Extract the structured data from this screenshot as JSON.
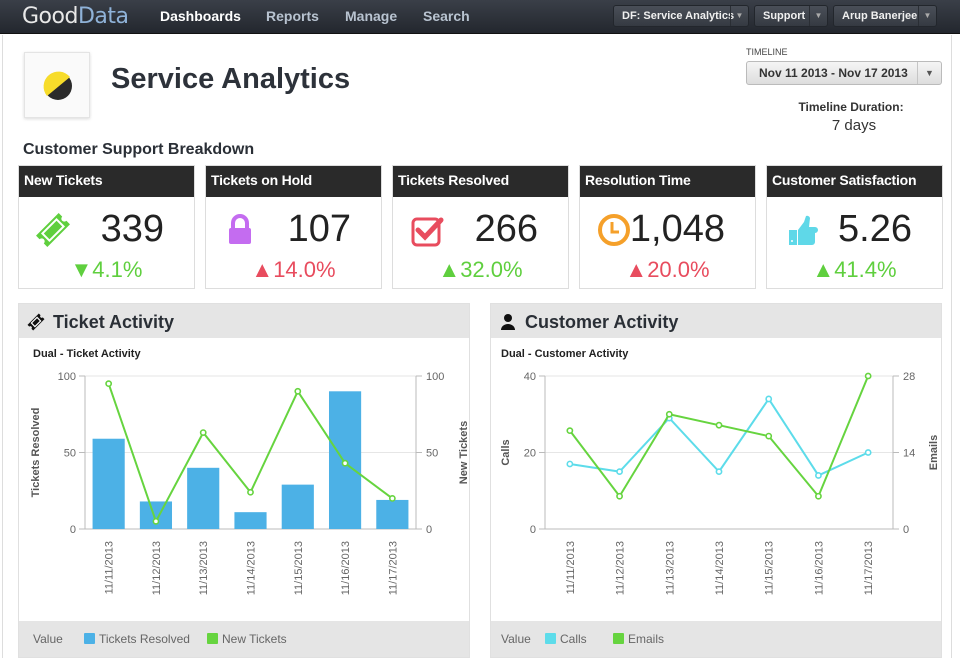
{
  "app": {
    "logo_good": "Good",
    "logo_data": "Data"
  },
  "nav": {
    "items": [
      {
        "label": "Dashboards",
        "active": true
      },
      {
        "label": "Reports"
      },
      {
        "label": "Manage"
      },
      {
        "label": "Search"
      }
    ]
  },
  "topbar": {
    "project": "DF: Service Analytics",
    "help": "Support",
    "user": "Arup Banerjee"
  },
  "header": {
    "title": "Service Analytics"
  },
  "timeline": {
    "label": "TIMELINE",
    "value": "Nov 11 2013 - Nov 17 2013",
    "duration_label": "Timeline Duration:",
    "duration_value": "7 days"
  },
  "section": {
    "title": "Customer Support Breakdown"
  },
  "kpis": [
    {
      "title": "New Tickets",
      "value": "339",
      "change": "▼4.1%",
      "direction": "down",
      "icon": "ticket-icon",
      "color": "#5fcf3e"
    },
    {
      "title": "Tickets on Hold",
      "value": "107",
      "change": "▲14.0%",
      "direction": "up",
      "icon": "lock-icon",
      "color": "#c46cf0"
    },
    {
      "title": "Tickets Resolved",
      "value": "266",
      "change": "▲32.0%",
      "direction": "up",
      "icon": "checkbox-icon",
      "color": "#e84c5e"
    },
    {
      "title": "Resolution Time",
      "value": "1,048",
      "change": "▲20.0%",
      "direction": "up",
      "icon": "clock-icon",
      "color": "#f5a02a"
    },
    {
      "title": "Customer Satisfaction",
      "value": "5.26",
      "change": "▲41.4%",
      "direction": "up",
      "icon": "thumbs-up-icon",
      "color": "#5fd8e8"
    }
  ],
  "panels": {
    "ticket": {
      "title": "Ticket Activity",
      "subtitle": "Dual - Ticket Activity",
      "legend_label": "Value"
    },
    "customer": {
      "title": "Customer Activity",
      "subtitle": "Dual - Customer Activity",
      "legend_label": "Value"
    }
  },
  "chart_data": [
    {
      "type": "bar",
      "title": "Dual - Ticket Activity",
      "categories": [
        "11/11/2013",
        "11/12/2013",
        "11/13/2013",
        "11/14/2013",
        "11/15/2013",
        "11/16/2013",
        "11/17/2013"
      ],
      "series": [
        {
          "name": "Tickets Resolved",
          "kind": "bar",
          "axis": "left",
          "color": "#4cb1e6",
          "values": [
            59,
            18,
            40,
            11,
            29,
            90,
            19
          ]
        },
        {
          "name": "New Tickets",
          "kind": "line",
          "axis": "right",
          "color": "#66d43f",
          "values": [
            95,
            5,
            63,
            24,
            90,
            43,
            20
          ]
        }
      ],
      "ylabel": "Tickets Resolved",
      "ylim": [
        0,
        100
      ],
      "yticks": [
        0,
        50,
        100
      ],
      "y2label": "New Tickets",
      "y2lim": [
        0,
        100
      ],
      "y2ticks": [
        0,
        50,
        100
      ],
      "grid": true,
      "legend": "bottom"
    },
    {
      "type": "line",
      "title": "Dual - Customer Activity",
      "categories": [
        "11/11/2013",
        "11/12/2013",
        "11/13/2013",
        "11/14/2013",
        "11/15/2013",
        "11/16/2013",
        "11/17/2013"
      ],
      "series": [
        {
          "name": "Calls",
          "kind": "line",
          "axis": "left",
          "color": "#5ddcea",
          "values": [
            17,
            15,
            29,
            15,
            34,
            14,
            20
          ]
        },
        {
          "name": "Emails",
          "kind": "line",
          "axis": "right",
          "color": "#66d43f",
          "values": [
            18,
            6,
            21,
            19,
            17,
            6,
            28
          ]
        }
      ],
      "ylabel": "Calls",
      "ylim": [
        0,
        40
      ],
      "yticks": [
        0,
        20,
        40
      ],
      "y2label": "Emails",
      "y2lim": [
        0,
        28
      ],
      "y2ticks": [
        0,
        14,
        28
      ],
      "grid": true,
      "legend": "bottom"
    }
  ]
}
